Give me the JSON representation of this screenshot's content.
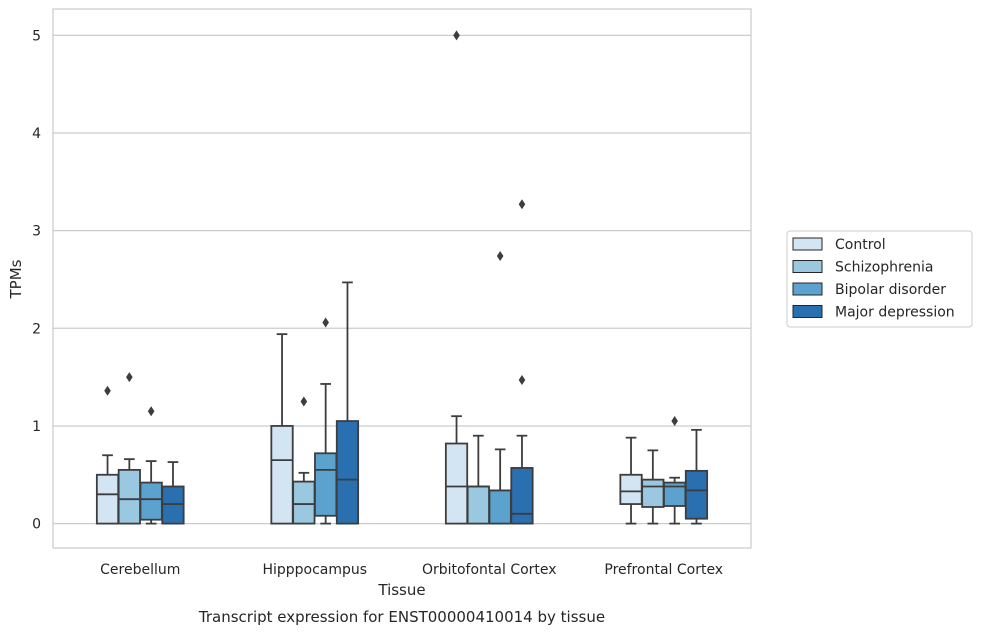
{
  "chart_data": {
    "type": "box",
    "title": "Transcript expression for ENST00000410014 by tissue",
    "xlabel": "Tissue",
    "ylabel": "TPMs",
    "ylim": [
      -0.25,
      5.27
    ],
    "yticks": [
      0,
      1,
      2,
      3,
      4,
      5
    ],
    "grid": "horizontal",
    "legend_position": "right",
    "categories": [
      "Cerebellum",
      "Hipppocampus",
      "Orbitofontal Cortex",
      "Prefrontal Cortex"
    ],
    "series": [
      {
        "name": "Control",
        "color": "#d3e4f3",
        "boxes": [
          {
            "whisker_low": 0,
            "q1": 0,
            "median": 0.3,
            "q3": 0.5,
            "whisker_high": 0.7,
            "outliers": [
              1.36
            ]
          },
          {
            "whisker_low": 0,
            "q1": 0,
            "median": 0.65,
            "q3": 1.0,
            "whisker_high": 1.94,
            "outliers": []
          },
          {
            "whisker_low": 0,
            "q1": 0,
            "median": 0.38,
            "q3": 0.82,
            "whisker_high": 1.1,
            "outliers": [
              5.0
            ]
          },
          {
            "whisker_low": 0,
            "q1": 0.2,
            "median": 0.33,
            "q3": 0.5,
            "whisker_high": 0.88,
            "outliers": []
          }
        ]
      },
      {
        "name": "Schizophrenia",
        "color": "#9ac8e0",
        "boxes": [
          {
            "whisker_low": 0,
            "q1": 0,
            "median": 0.25,
            "q3": 0.55,
            "whisker_high": 0.66,
            "outliers": [
              1.5
            ]
          },
          {
            "whisker_low": 0,
            "q1": 0,
            "median": 0.2,
            "q3": 0.43,
            "whisker_high": 0.52,
            "outliers": [
              1.25
            ]
          },
          {
            "whisker_low": 0,
            "q1": 0,
            "median": 0.38,
            "q3": 0.38,
            "whisker_high": 0.9,
            "outliers": []
          },
          {
            "whisker_low": 0,
            "q1": 0.17,
            "median": 0.38,
            "q3": 0.45,
            "whisker_high": 0.75,
            "outliers": []
          }
        ]
      },
      {
        "name": "Bipolar disorder",
        "color": "#5ba2cf",
        "boxes": [
          {
            "whisker_low": 0,
            "q1": 0.04,
            "median": 0.25,
            "q3": 0.42,
            "whisker_high": 0.64,
            "outliers": [
              1.15
            ]
          },
          {
            "whisker_low": 0,
            "q1": 0.08,
            "median": 0.55,
            "q3": 0.72,
            "whisker_high": 1.43,
            "outliers": [
              2.06
            ]
          },
          {
            "whisker_low": 0,
            "q1": 0,
            "median": 0.34,
            "q3": 0.34,
            "whisker_high": 0.76,
            "outliers": [
              2.74
            ]
          },
          {
            "whisker_low": 0,
            "q1": 0.18,
            "median": 0.38,
            "q3": 0.42,
            "whisker_high": 0.47,
            "outliers": [
              1.05
            ]
          }
        ]
      },
      {
        "name": "Major depression",
        "color": "#2a6fb0",
        "boxes": [
          {
            "whisker_low": 0,
            "q1": 0,
            "median": 0.2,
            "q3": 0.38,
            "whisker_high": 0.63,
            "outliers": []
          },
          {
            "whisker_low": 0,
            "q1": 0,
            "median": 0.45,
            "q3": 1.05,
            "whisker_high": 2.47,
            "outliers": []
          },
          {
            "whisker_low": 0,
            "q1": 0,
            "median": 0.1,
            "q3": 0.57,
            "whisker_high": 0.9,
            "outliers": [
              1.47,
              3.27
            ]
          },
          {
            "whisker_low": 0,
            "q1": 0.05,
            "median": 0.34,
            "q3": 0.54,
            "whisker_high": 0.96,
            "outliers": []
          }
        ]
      }
    ]
  }
}
